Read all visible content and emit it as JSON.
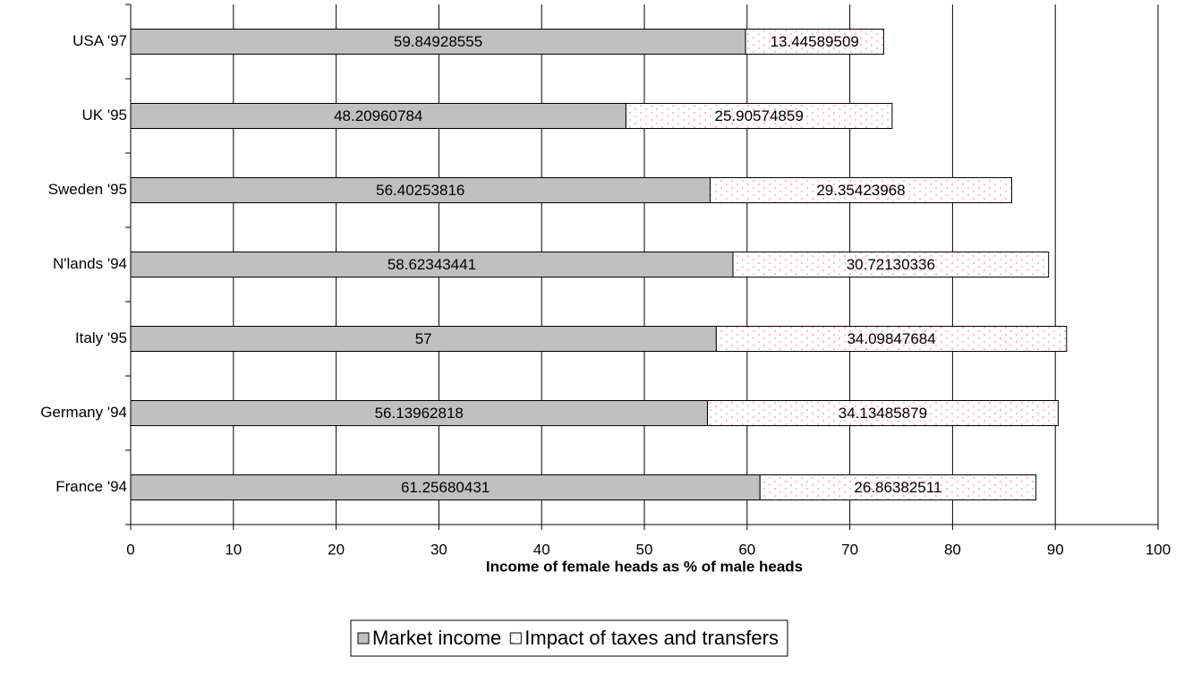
{
  "chart_data": {
    "type": "stacked_barh",
    "xlabel": "Income of female heads as % of male heads",
    "categories": [
      "USA '97",
      "UK '95",
      "Sweden '95",
      "N'lands '94",
      "Italy '95",
      "Germany '94",
      "France '94"
    ],
    "series": [
      {
        "name": "Market income",
        "color": "#c0c0c0",
        "values": [
          59.84928555,
          48.20960784,
          56.40253816,
          58.62343441,
          57,
          56.13962818,
          61.25680431
        ]
      },
      {
        "name": "Impact of taxes and transfers",
        "color": "#ffffff",
        "values": [
          13.44589509,
          25.90574859,
          29.35423968,
          30.72130336,
          34.09847684,
          34.13485879,
          26.86382511
        ]
      }
    ],
    "xlim": [
      0,
      100
    ],
    "xticks": [
      0,
      10,
      20,
      30,
      40,
      50,
      60,
      70,
      80,
      90,
      100
    ],
    "grid": true,
    "legend": "bottom"
  }
}
